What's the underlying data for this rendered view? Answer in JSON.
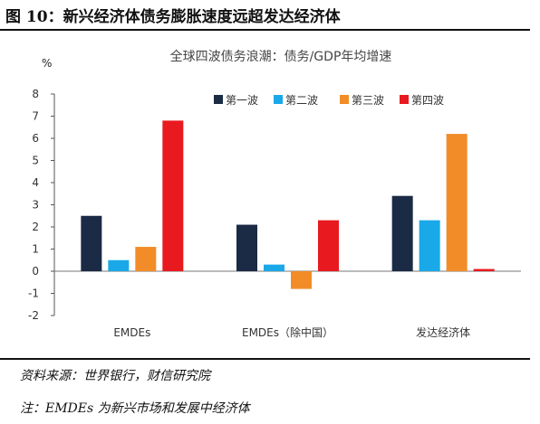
{
  "figure": {
    "title": "图 10：新兴经济体债务膨胀速度远超发达经济体",
    "source": "资料来源：世界银行，财信研究院",
    "note": "注：EMDEs 为新兴市场和发展中经济体"
  },
  "chart_data": {
    "type": "bar",
    "title": "全球四波债务浪潮：债务/GDP年均增速",
    "ylabel": "%",
    "xlabel": "",
    "categories": [
      "EMDEs",
      "EMDEs（除中国）",
      "发达经济体"
    ],
    "ylim": [
      -2,
      8
    ],
    "yticks": [
      -2,
      -1,
      0,
      1,
      2,
      3,
      4,
      5,
      6,
      7,
      8
    ],
    "legend_position": "top-right",
    "grid": false,
    "series": [
      {
        "name": "第一波",
        "color": "#1b2a45",
        "values": [
          2.5,
          2.1,
          3.4
        ]
      },
      {
        "name": "第二波",
        "color": "#1aa9e8",
        "values": [
          0.5,
          0.3,
          2.3
        ]
      },
      {
        "name": "第三波",
        "color": "#f28c28",
        "values": [
          1.1,
          -0.8,
          6.2
        ]
      },
      {
        "name": "第四波",
        "color": "#e8191f",
        "values": [
          6.8,
          2.3,
          0.1
        ]
      }
    ]
  }
}
